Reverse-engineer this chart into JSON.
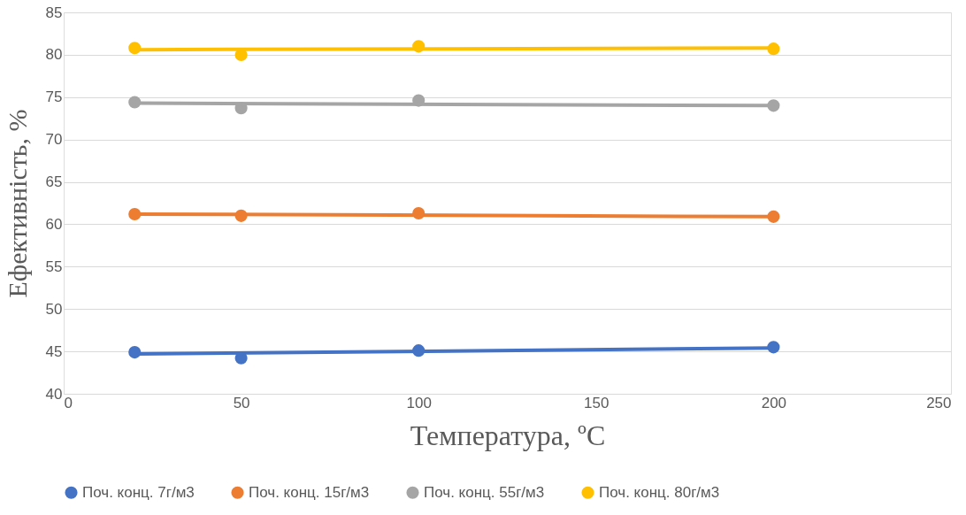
{
  "chart_data": {
    "type": "scatter",
    "xlabel": "Температура, ºС",
    "ylabel": "Ефективність, %",
    "xlim": [
      0,
      250
    ],
    "xticks": [
      0,
      50,
      100,
      150,
      200,
      250
    ],
    "ylim": [
      40,
      85
    ],
    "yticks": [
      40,
      45,
      50,
      55,
      60,
      65,
      70,
      75,
      80,
      85
    ],
    "grid": "y",
    "legend": "bottom",
    "marker": "circle",
    "series": [
      {
        "name": "Поч. конц. 7г/м3",
        "color": "#4472c4",
        "x": [
          20,
          50,
          100,
          200
        ],
        "values": [
          44.9,
          44.2,
          45.1,
          45.5
        ]
      },
      {
        "name": "Поч. конц. 15г/м3",
        "color": "#ed7d31",
        "x": [
          20,
          50,
          100,
          200
        ],
        "values": [
          61.2,
          61.0,
          61.3,
          60.9
        ]
      },
      {
        "name": "Поч. конц. 55г/м3",
        "color": "#a5a5a5",
        "x": [
          20,
          50,
          100,
          200
        ],
        "values": [
          74.4,
          73.7,
          74.6,
          74.0
        ]
      },
      {
        "name": "Поч. конц. 80г/м3",
        "color": "#ffc000",
        "x": [
          20,
          50,
          100,
          200
        ],
        "values": [
          80.8,
          80.0,
          81.0,
          80.7
        ]
      },
      {
        "type": "line",
        "marker": "none",
        "color": "#4472c4",
        "x": [
          20,
          200
        ],
        "values": [
          44.7,
          45.4
        ]
      },
      {
        "type": "line",
        "marker": "none",
        "color": "#ed7d31",
        "x": [
          20,
          200
        ],
        "values": [
          61.2,
          60.9
        ]
      },
      {
        "type": "line",
        "marker": "none",
        "color": "#a5a5a5",
        "x": [
          20,
          200
        ],
        "values": [
          74.3,
          74.0
        ]
      },
      {
        "type": "line",
        "marker": "none",
        "color": "#ffc000",
        "x": [
          20,
          200
        ],
        "values": [
          80.6,
          80.8
        ]
      }
    ]
  }
}
